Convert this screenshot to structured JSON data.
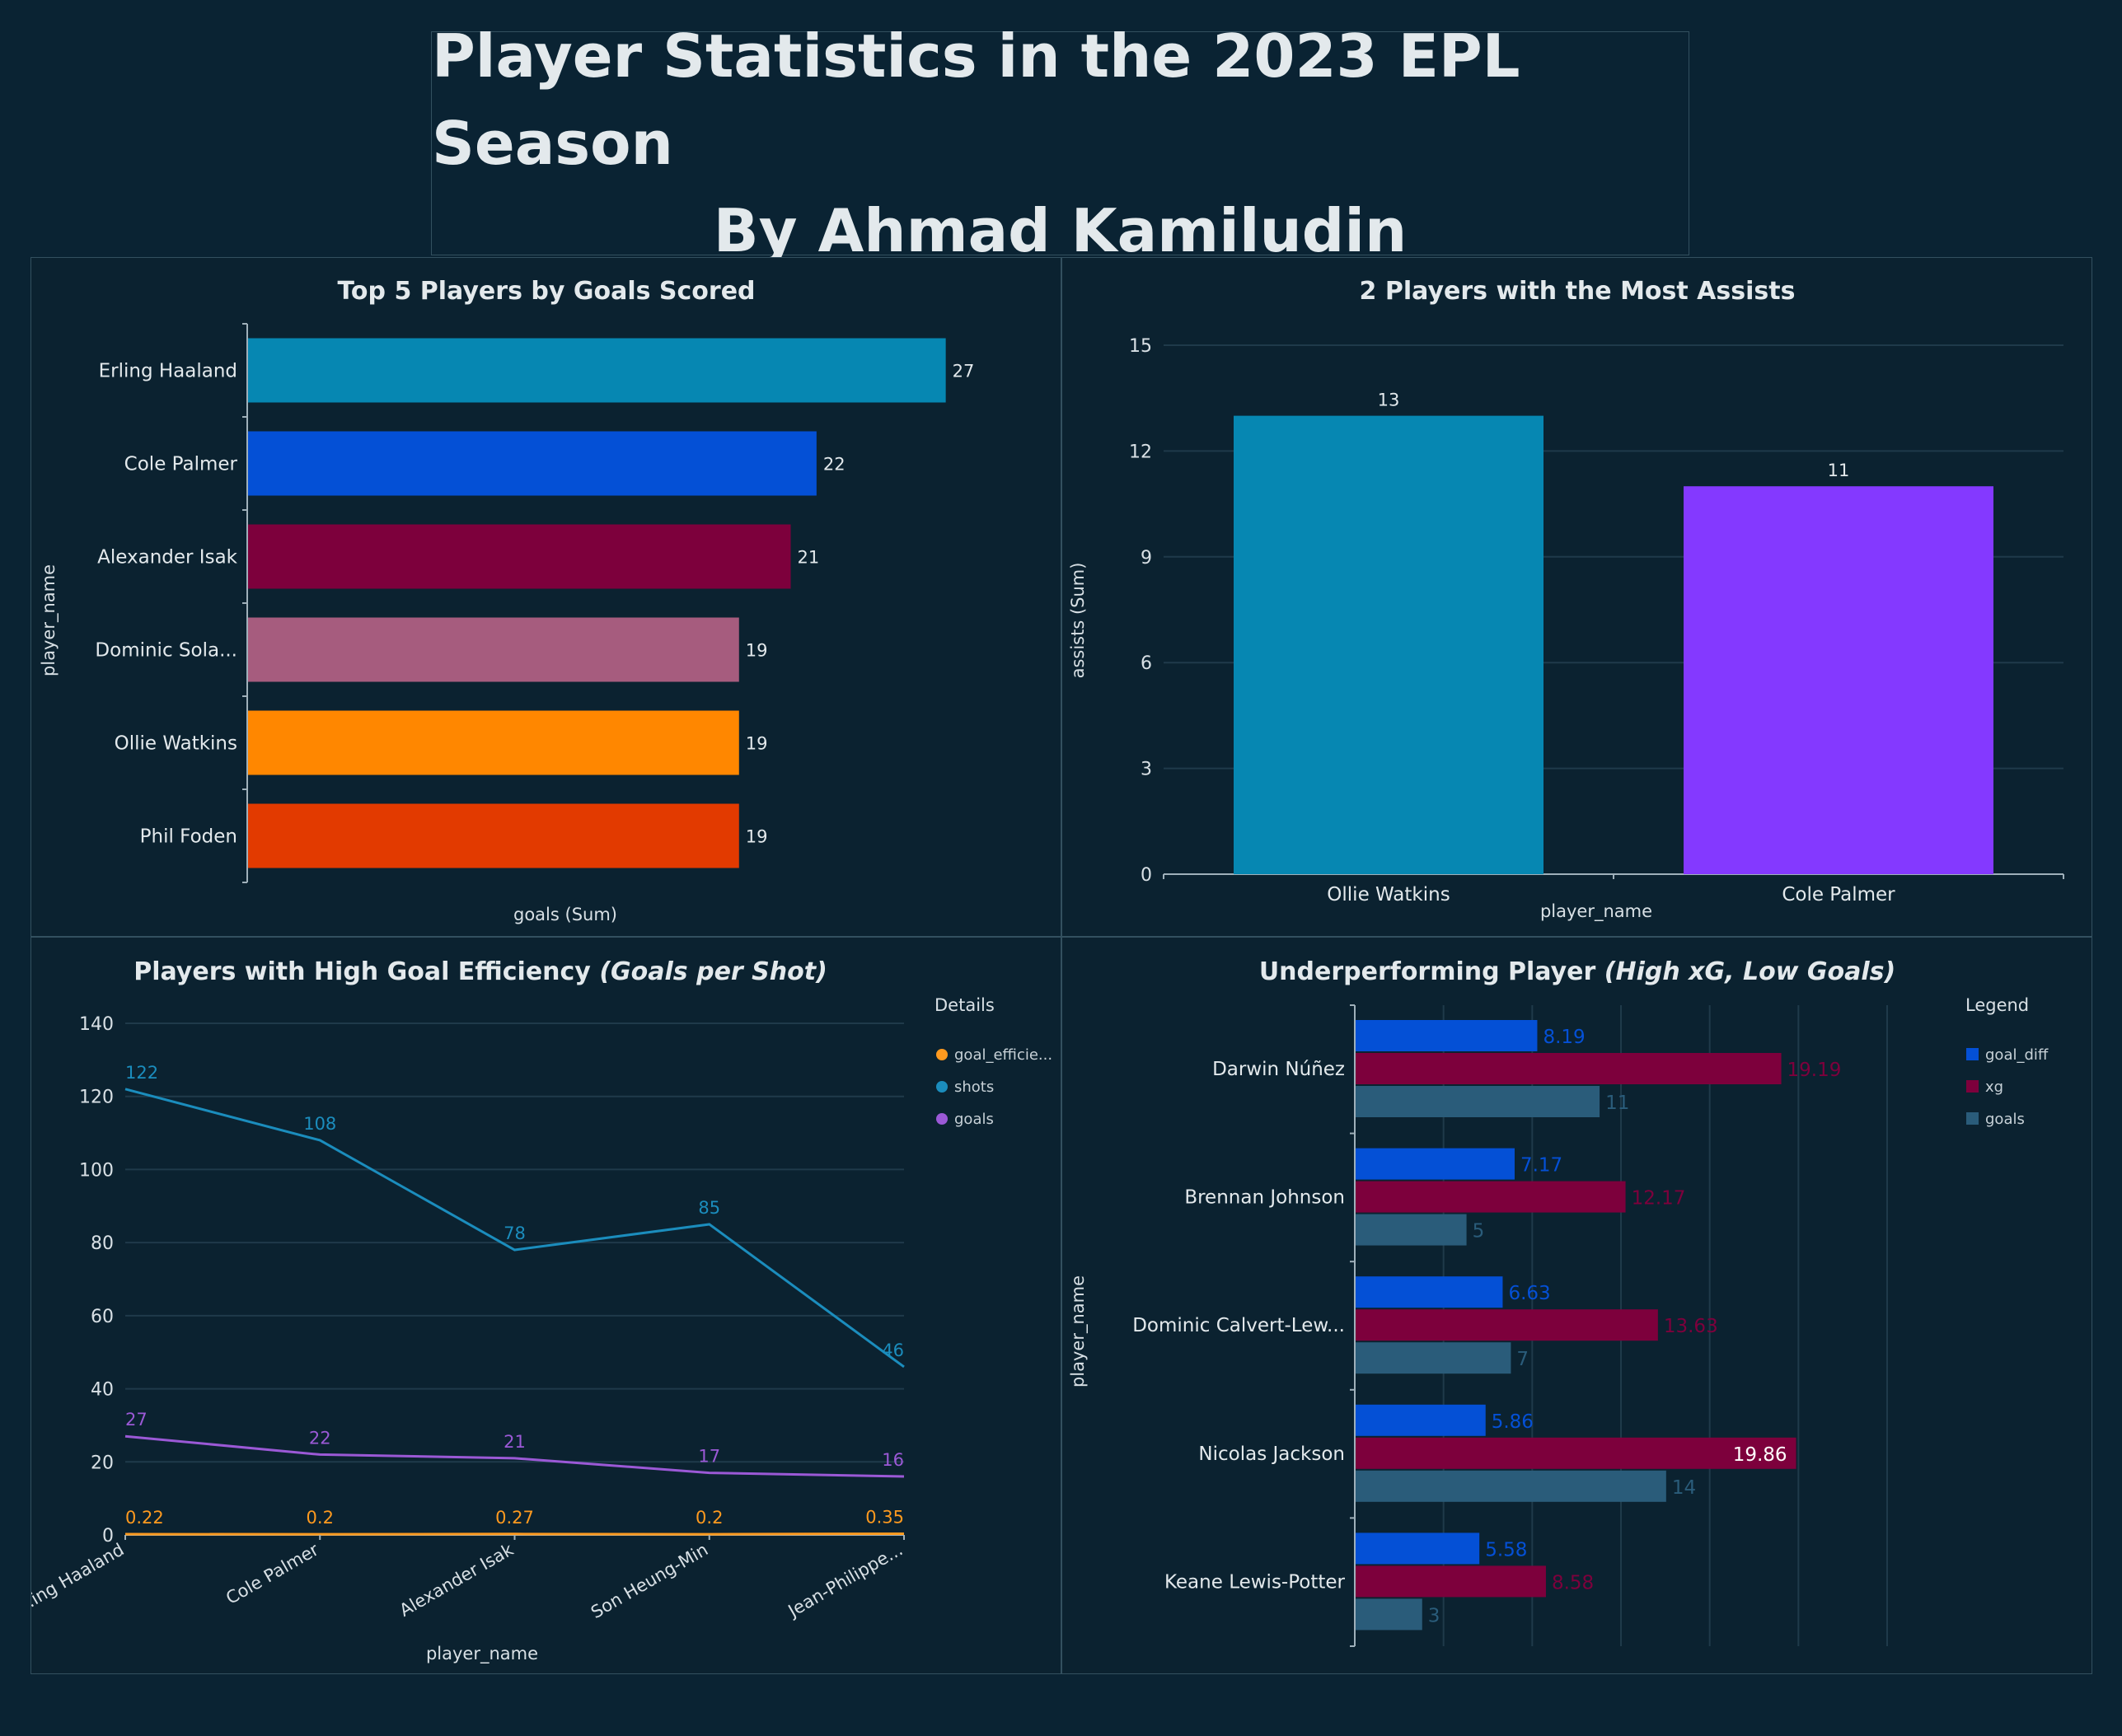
{
  "header": {
    "title_line1": "Player Statistics in the 2023 EPL Season",
    "title_line2": "By Ahmad Kamiludin"
  },
  "chart_data": [
    {
      "type": "bar",
      "orientation": "horizontal",
      "title": "Top 5 Players by Goals Scored",
      "xlabel": "goals (Sum)",
      "ylabel": "player_name",
      "categories": [
        "Erling Haaland",
        "Cole Palmer",
        "Alexander Isak",
        "Dominic Sola...",
        "Ollie Watkins",
        "Phil Foden"
      ],
      "values": [
        27,
        22,
        21,
        19,
        19,
        19
      ],
      "colors": [
        "#0687b2",
        "#0450d6",
        "#7d003c",
        "#a65c7e",
        "#ff8700",
        "#e23a00"
      ],
      "xlim": [
        0,
        28
      ],
      "grid": false
    },
    {
      "type": "bar",
      "orientation": "vertical",
      "title": "2 Players with the Most Assists",
      "xlabel": "player_name",
      "ylabel": "assists (Sum)",
      "categories": [
        "Ollie Watkins",
        "Cole Palmer"
      ],
      "values": [
        13,
        11
      ],
      "colors": [
        "#0687b2",
        "#8439ff"
      ],
      "ylim": [
        0,
        15
      ],
      "yticks": [
        0,
        3,
        6,
        9,
        12,
        15
      ],
      "grid": true
    },
    {
      "type": "line",
      "title": "Players with High Goal Efficiency",
      "title_italic": "(Goals per Shot)",
      "xlabel": "player_name",
      "categories": [
        "Erling Haaland",
        "Cole Palmer",
        "Alexander Isak",
        "Son Heung-Min",
        "Jean-Philippe..."
      ],
      "category_labels": [
        ".ing Haaland",
        "Cole Palmer",
        "Alexander Isak",
        "Son Heung-Min",
        "Jean-Philippe..."
      ],
      "legend_title": "Details",
      "legend_position": "right",
      "series": [
        {
          "name": "goal_efficie...",
          "values": [
            0.22,
            0.2,
            0.27,
            0.2,
            0.35
          ],
          "labels": [
            "0.22",
            "0.2",
            "0.27",
            "0.2",
            "0.35"
          ],
          "color": "#ff9a1f"
        },
        {
          "name": "shots",
          "values": [
            122,
            108,
            78,
            85,
            46
          ],
          "labels": [
            "122",
            "108",
            "78",
            "85",
            "46"
          ],
          "color": "#1b8dbd"
        },
        {
          "name": "goals",
          "values": [
            27,
            22,
            21,
            17,
            16
          ],
          "labels": [
            "27",
            "22",
            "21",
            "17",
            "16"
          ],
          "color": "#9b59d6"
        }
      ],
      "ylim": [
        0,
        140
      ],
      "yticks": [
        0,
        20,
        40,
        60,
        80,
        100,
        120,
        140
      ],
      "grid": true
    },
    {
      "type": "bar",
      "orientation": "horizontal",
      "title": "Underperforming Player",
      "title_italic": "(High xG, Low Goals)",
      "ylabel": "player_name",
      "categories": [
        "Darwin Núñez",
        "Brennan Johnson",
        "Dominic Calvert-Lew...",
        "Nicolas Jackson",
        "Keane Lewis-Potter"
      ],
      "legend_title": "Legend",
      "legend_position": "right",
      "series": [
        {
          "name": "goal_diff",
          "values": [
            8.19,
            7.17,
            6.63,
            5.86,
            5.58
          ],
          "labels": [
            "8.19",
            "7.17",
            "6.63",
            "5.86",
            "5.58"
          ],
          "color": "#0450d6"
        },
        {
          "name": "xg",
          "values": [
            19.19,
            12.17,
            13.63,
            19.86,
            8.58
          ],
          "labels": [
            "19.19",
            "12.17",
            "13.63",
            "19.86",
            "8.58"
          ],
          "color": "#7d003c"
        },
        {
          "name": "goals",
          "values": [
            11,
            5,
            7,
            14,
            3
          ],
          "labels": [
            "11",
            "5",
            "7",
            "14",
            "3"
          ],
          "color": "#2a5c7a"
        }
      ],
      "xlim": [
        0,
        24
      ],
      "grid": true
    }
  ]
}
